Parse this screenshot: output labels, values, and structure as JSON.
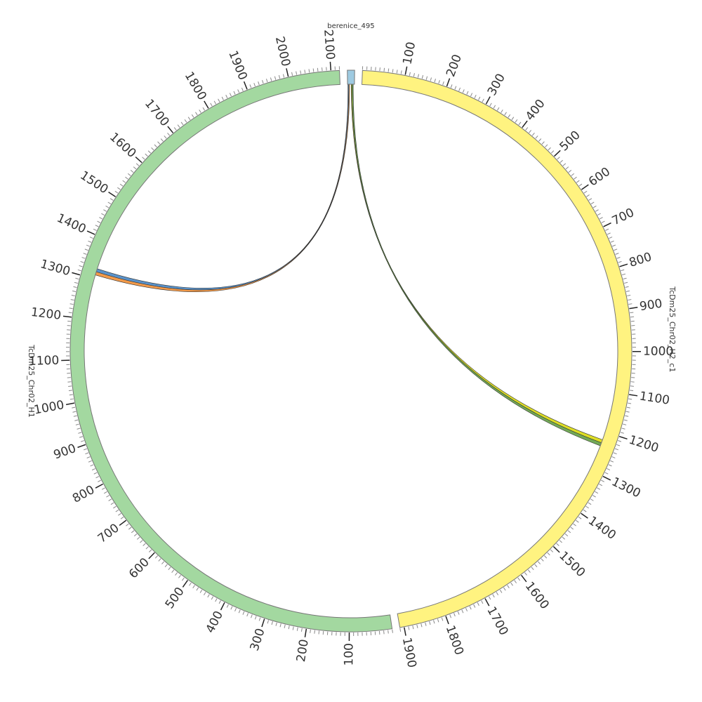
{
  "chart_data": {
    "type": "chord",
    "segments": [
      {
        "name": "berenice_495",
        "color": "#9ecae1",
        "length": 17,
        "ticks": []
      },
      {
        "name": "TcDm25_Chr02_H2_c1",
        "color": "#fff380",
        "length": 1910,
        "ticks": [
          100,
          200,
          300,
          400,
          500,
          600,
          700,
          800,
          900,
          1000,
          1100,
          1200,
          1300,
          1400,
          1500,
          1600,
          1700,
          1800,
          1900
        ]
      },
      {
        "name": "TcDm25_Chr02_H1",
        "color": "#a3d8a0",
        "length": 2120,
        "ticks": [
          100,
          200,
          300,
          400,
          500,
          600,
          700,
          800,
          900,
          1000,
          1100,
          1200,
          1300,
          1400,
          1500,
          1600,
          1700,
          1800,
          1900,
          2000,
          2100
        ]
      }
    ],
    "minor_tick_step": 10,
    "links": [
      {
        "source": 0,
        "source_start": 1,
        "source_end": 3,
        "target": 2,
        "target_start": 1318,
        "target_end": 1326,
        "color": "#3d7fbf"
      },
      {
        "source": 0,
        "source_start": 3,
        "source_end": 5,
        "target": 2,
        "target_start": 1310,
        "target_end": 1318,
        "color": "#f0882a"
      },
      {
        "source": 0,
        "source_start": 9,
        "source_end": 11,
        "target": 1,
        "target_start": 1220,
        "target_end": 1228,
        "color": "#d8d800"
      },
      {
        "source": 0,
        "source_start": 11,
        "source_end": 14,
        "target": 1,
        "target_start": 1228,
        "target_end": 1236,
        "color": "#5a9a3a"
      }
    ]
  }
}
